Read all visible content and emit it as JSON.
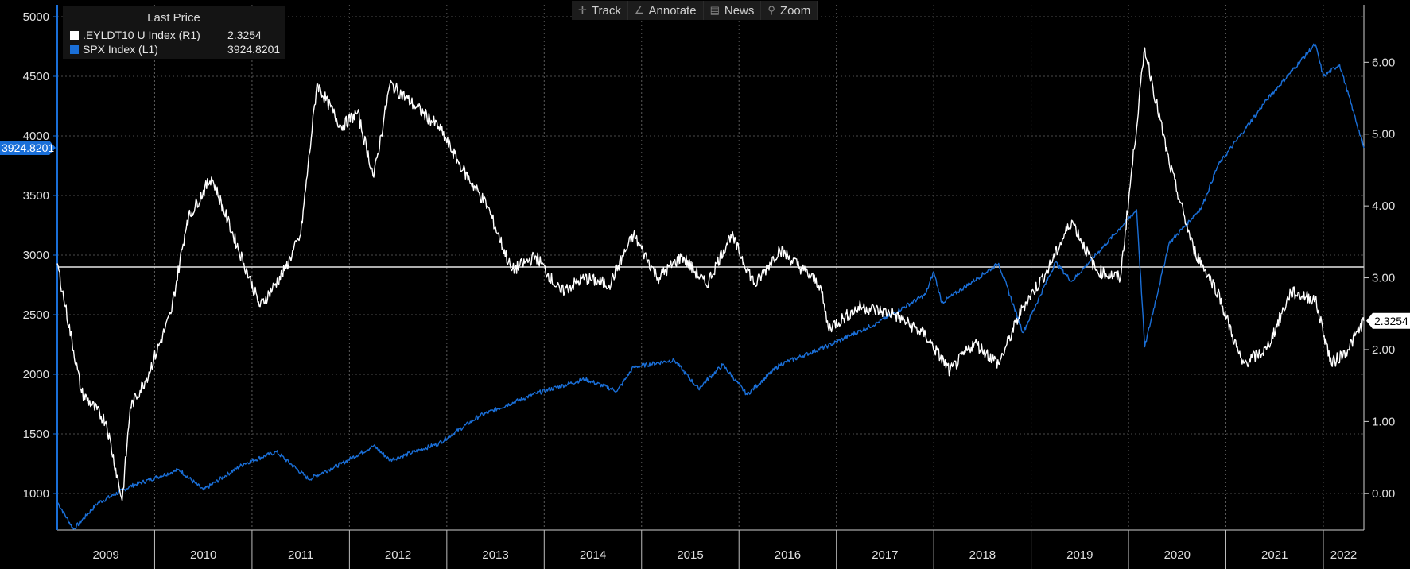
{
  "toolbar": {
    "items": [
      {
        "icon": "crosshair-icon",
        "glyph": "✛",
        "label": "Track"
      },
      {
        "icon": "pencil-icon",
        "glyph": "∠",
        "label": "Annotate"
      },
      {
        "icon": "news-icon",
        "glyph": "▤",
        "label": "News"
      },
      {
        "icon": "magnifier-icon",
        "glyph": "⚲",
        "label": "Zoom"
      }
    ]
  },
  "legend": {
    "title": "Last Price",
    "entries": [
      {
        "name": ".EYLDT10 U Index  (R1)",
        "value": "2.3254",
        "color": "#ffffff"
      },
      {
        "name": "SPX Index  (L1)",
        "value": "3924.8201",
        "color": "#1a6fd8"
      }
    ]
  },
  "markers": {
    "left_value": "3924.8201",
    "right_value": "2.3254"
  },
  "chart_data": {
    "type": "line",
    "title": "",
    "x_axis": {
      "type": "date",
      "labels": [
        "2009",
        "2010",
        "2011",
        "2012",
        "2013",
        "2014",
        "2015",
        "2016",
        "2017",
        "2018",
        "2019",
        "2020",
        "2021",
        "2022"
      ],
      "range": [
        "2009-01",
        "2022-06"
      ]
    },
    "y_axis_left": {
      "ylim": [
        700,
        5100
      ],
      "ticks": [
        "1000",
        "1500",
        "2000",
        "2500",
        "3000",
        "3500",
        "4000",
        "4500",
        "5000"
      ],
      "series": "SPX Index  (L1)"
    },
    "y_axis_right": {
      "ylim": [
        -0.5,
        6.8
      ],
      "ticks": [
        "0.00",
        "1.00",
        "2.00",
        "3.00",
        "4.00",
        "5.00",
        "6.00"
      ],
      "series": ".EYLDT10 U Index  (R1)"
    },
    "reference_line": {
      "axis": "right",
      "value": 3.15
    },
    "grid": true,
    "legend_position": "top-left",
    "series": [
      {
        "name": "SPX Index  (L1)",
        "axis": "left",
        "color": "#1a6fd8",
        "points": [
          [
            "2009-01",
            930
          ],
          [
            "2009-03",
            700
          ],
          [
            "2009-06",
            920
          ],
          [
            "2009-10",
            1060
          ],
          [
            "2010-04",
            1200
          ],
          [
            "2010-07",
            1030
          ],
          [
            "2010-12",
            1250
          ],
          [
            "2011-04",
            1350
          ],
          [
            "2011-08",
            1120
          ],
          [
            "2011-12",
            1250
          ],
          [
            "2012-04",
            1400
          ],
          [
            "2012-06",
            1280
          ],
          [
            "2012-12",
            1420
          ],
          [
            "2013-05",
            1650
          ],
          [
            "2013-12",
            1840
          ],
          [
            "2014-06",
            1960
          ],
          [
            "2014-10",
            1860
          ],
          [
            "2014-12",
            2060
          ],
          [
            "2015-05",
            2120
          ],
          [
            "2015-08",
            1880
          ],
          [
            "2015-11",
            2080
          ],
          [
            "2016-02",
            1830
          ],
          [
            "2016-06",
            2080
          ],
          [
            "2016-12",
            2240
          ],
          [
            "2017-06",
            2430
          ],
          [
            "2017-12",
            2670
          ],
          [
            "2018-01",
            2860
          ],
          [
            "2018-02",
            2600
          ],
          [
            "2018-09",
            2930
          ],
          [
            "2018-12",
            2350
          ],
          [
            "2019-04",
            2940
          ],
          [
            "2019-06",
            2780
          ],
          [
            "2019-12",
            3230
          ],
          [
            "2020-02",
            3380
          ],
          [
            "2020-03",
            2230
          ],
          [
            "2020-06",
            3100
          ],
          [
            "2020-10",
            3400
          ],
          [
            "2020-12",
            3750
          ],
          [
            "2021-06",
            4300
          ],
          [
            "2021-12",
            4770
          ],
          [
            "2022-01",
            4500
          ],
          [
            "2022-03",
            4600
          ],
          [
            "2022-06",
            3900
          ]
        ]
      },
      {
        "name": ".EYLDT10 U Index  (R1)",
        "axis": "right",
        "color": "#ffffff",
        "points": [
          [
            "2009-01",
            3.2
          ],
          [
            "2009-02",
            2.6
          ],
          [
            "2009-04",
            1.4
          ],
          [
            "2009-07",
            1.0
          ],
          [
            "2009-09",
            -0.1
          ],
          [
            "2009-10",
            1.2
          ],
          [
            "2009-12",
            1.6
          ],
          [
            "2010-03",
            2.5
          ],
          [
            "2010-05",
            3.8
          ],
          [
            "2010-08",
            4.4
          ],
          [
            "2010-10",
            3.8
          ],
          [
            "2010-12",
            3.2
          ],
          [
            "2011-02",
            2.6
          ],
          [
            "2011-05",
            3.1
          ],
          [
            "2011-07",
            3.6
          ],
          [
            "2011-09",
            5.7
          ],
          [
            "2011-12",
            5.1
          ],
          [
            "2012-02",
            5.3
          ],
          [
            "2012-04",
            4.4
          ],
          [
            "2012-06",
            5.7
          ],
          [
            "2012-09",
            5.4
          ],
          [
            "2012-12",
            5.1
          ],
          [
            "2013-03",
            4.5
          ],
          [
            "2013-06",
            4.0
          ],
          [
            "2013-09",
            3.1
          ],
          [
            "2013-12",
            3.3
          ],
          [
            "2014-03",
            2.8
          ],
          [
            "2014-06",
            3.0
          ],
          [
            "2014-09",
            2.9
          ],
          [
            "2014-12",
            3.6
          ],
          [
            "2015-03",
            3.0
          ],
          [
            "2015-06",
            3.3
          ],
          [
            "2015-09",
            2.9
          ],
          [
            "2015-12",
            3.6
          ],
          [
            "2016-03",
            2.9
          ],
          [
            "2016-06",
            3.4
          ],
          [
            "2016-09",
            3.1
          ],
          [
            "2016-11",
            2.9
          ],
          [
            "2016-12",
            2.3
          ],
          [
            "2017-04",
            2.6
          ],
          [
            "2017-08",
            2.5
          ],
          [
            "2017-12",
            2.2
          ],
          [
            "2018-03",
            1.7
          ],
          [
            "2018-06",
            2.1
          ],
          [
            "2018-09",
            1.8
          ],
          [
            "2018-12",
            2.6
          ],
          [
            "2019-03",
            3.1
          ],
          [
            "2019-06",
            3.8
          ],
          [
            "2019-09",
            3.1
          ],
          [
            "2019-12",
            3.0
          ],
          [
            "2020-03",
            6.2
          ],
          [
            "2020-06",
            4.6
          ],
          [
            "2020-09",
            3.4
          ],
          [
            "2020-12",
            2.8
          ],
          [
            "2021-03",
            1.8
          ],
          [
            "2021-06",
            2.0
          ],
          [
            "2021-09",
            2.8
          ],
          [
            "2021-12",
            2.7
          ],
          [
            "2022-02",
            1.8
          ],
          [
            "2022-04",
            2.0
          ],
          [
            "2022-06",
            2.4
          ]
        ]
      }
    ]
  }
}
